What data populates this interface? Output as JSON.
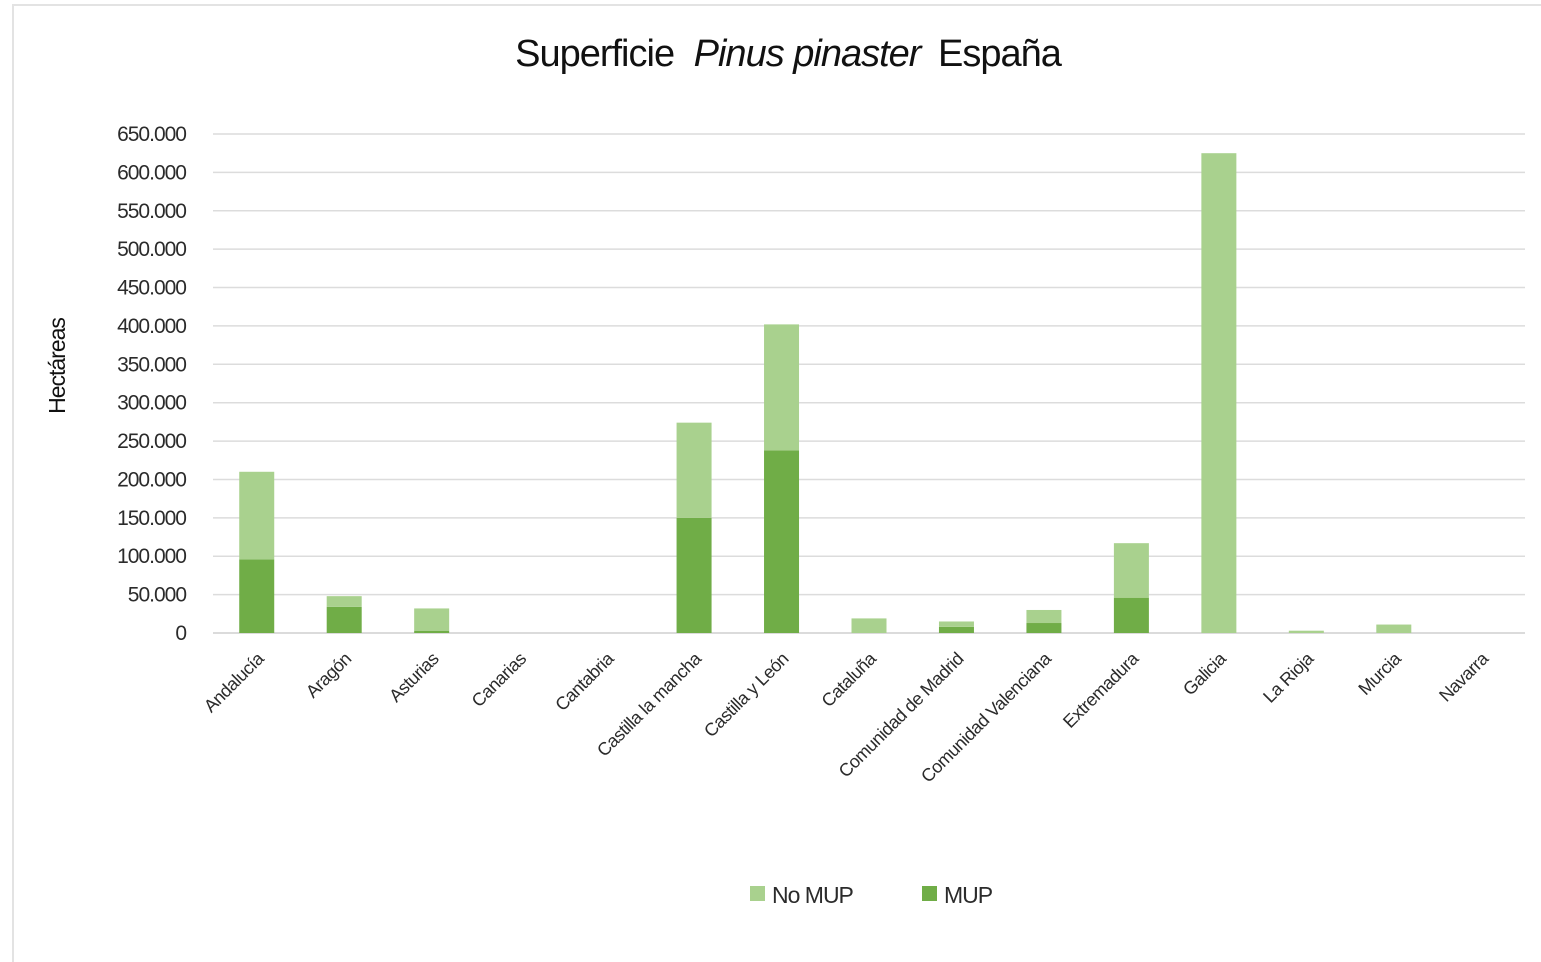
{
  "chart_data": {
    "type": "bar",
    "stacked": true,
    "title": {
      "prefix": "Superficie",
      "italic": "Pinus pinaster",
      "suffix": "España"
    },
    "xlabel": "",
    "ylabel": "Hectáreas",
    "ylim": [
      0,
      650000
    ],
    "yticks": [
      0,
      50000,
      100000,
      150000,
      200000,
      250000,
      300000,
      350000,
      400000,
      450000,
      500000,
      550000,
      600000,
      650000
    ],
    "ytick_labels": [
      "0",
      "50.000",
      "100.000",
      "150.000",
      "200.000",
      "250.000",
      "300.000",
      "350.000",
      "400.000",
      "450.000",
      "500.000",
      "550.000",
      "600.000",
      "650.000"
    ],
    "grid": true,
    "legend_position": "bottom",
    "categories": [
      "Andalucía",
      "Aragón",
      "Asturias",
      "Canarias",
      "Cantabria",
      "Castilla la mancha",
      "Castilla y León",
      "Cataluña",
      "Comunidad de Madrid",
      "Comunidad Valenciana",
      "Extremadura",
      "Galicia",
      "La Rioja",
      "Murcia",
      "Navarra"
    ],
    "series": [
      {
        "name": "MUP",
        "color": "#70ad47",
        "values": [
          96000,
          34000,
          3000,
          0,
          0,
          150000,
          238000,
          0,
          8000,
          13000,
          46000,
          0,
          0,
          0,
          0
        ]
      },
      {
        "name": "No MUP",
        "color": "#a9d18e",
        "values": [
          114000,
          14000,
          29000,
          0,
          0,
          124000,
          164000,
          19000,
          7000,
          17000,
          71000,
          625000,
          3000,
          11000,
          0
        ]
      }
    ],
    "legend": [
      {
        "name": "No MUP",
        "color": "#a9d18e"
      },
      {
        "name": "MUP",
        "color": "#70ad47"
      }
    ]
  }
}
